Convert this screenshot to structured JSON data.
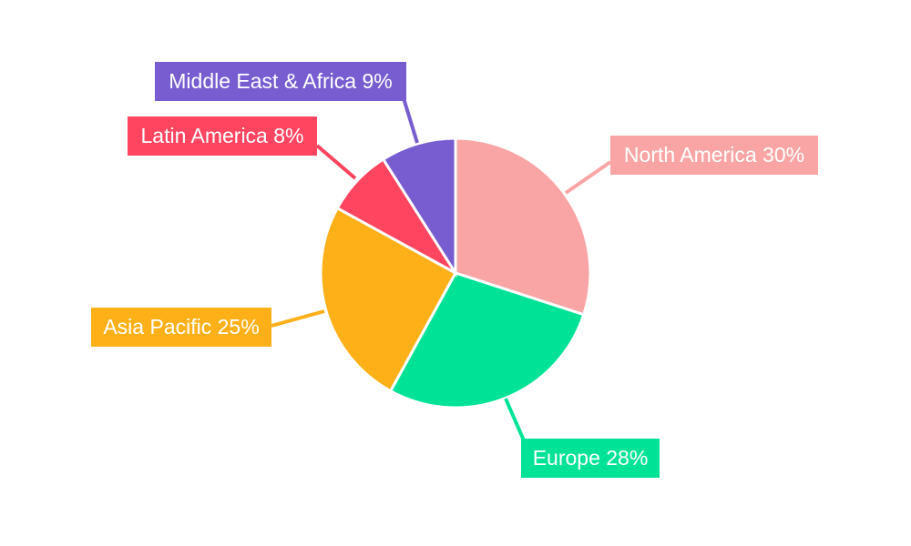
{
  "chart_data": {
    "type": "pie",
    "title": "",
    "start_angle": "top, clockwise",
    "slices": [
      {
        "label": "North America",
        "value": 30,
        "text": "North America 30%",
        "color": "#F9A5A5"
      },
      {
        "label": "Europe",
        "value": 28,
        "text": "Europe 28%",
        "color": "#00E396"
      },
      {
        "label": "Asia Pacific",
        "value": 25,
        "text": "Asia Pacific 25%",
        "color": "#FEB019"
      },
      {
        "label": "Latin America",
        "value": 8,
        "text": "Latin America 8%",
        "color": "#FF4560"
      },
      {
        "label": "Middle East & Africa",
        "value": 9,
        "text": "Middle East & Africa 9%",
        "color": "#775DD0"
      }
    ],
    "legend": "none",
    "labels": "outside with leader lines"
  }
}
